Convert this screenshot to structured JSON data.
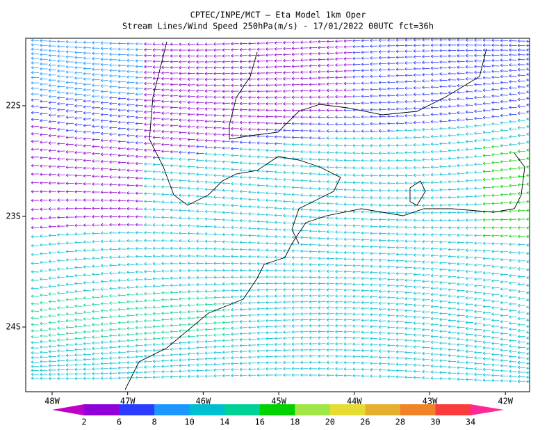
{
  "header": {
    "title": "CPTEC/INPE/MCT —  Eta Model 1km Oper",
    "subtitle": "Stream Lines/Wind Speed 250hPa(m/s) - 17/01/2022 00UTC fct=36h"
  },
  "map": {
    "x_labels": [
      "48W",
      "47W",
      "46W",
      "45W",
      "44W",
      "43W",
      "42W"
    ],
    "y_labels": [
      "22S",
      "23S",
      "24S"
    ]
  },
  "colorbar": {
    "labels": [
      2,
      6,
      8,
      10,
      14,
      16,
      18,
      20,
      26,
      28,
      30,
      34
    ],
    "colors": [
      "#c000c8",
      "#9000d8",
      "#2c3cff",
      "#1e96ff",
      "#00bed2",
      "#00d296",
      "#00d200",
      "#a0e646",
      "#e6dc32",
      "#e6af2d",
      "#f08228",
      "#fa3c3c",
      "#ff2896"
    ]
  }
}
